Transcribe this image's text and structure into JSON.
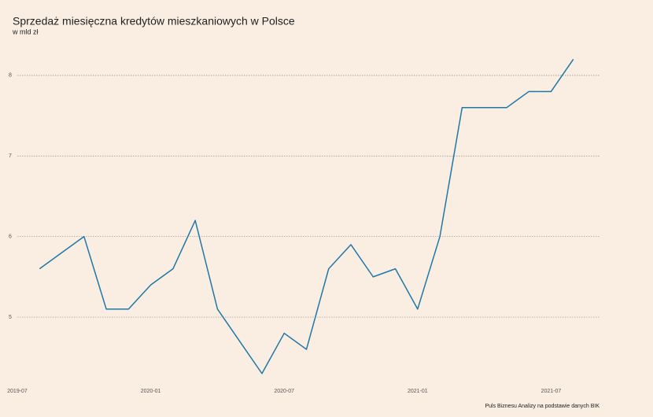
{
  "chart_data": {
    "type": "line",
    "title": "Sprzedaż miesięczna kredytów mieszkaniowych w Polsce",
    "subtitle": "w mld zł",
    "source": "Puls Biznesu Analizy na podstawie danych BIK",
    "x": [
      "2019-08",
      "2019-09",
      "2019-10",
      "2019-11",
      "2019-12",
      "2020-01",
      "2020-02",
      "2020-03",
      "2020-04",
      "2020-05",
      "2020-06",
      "2020-07",
      "2020-08",
      "2020-09",
      "2020-10",
      "2020-11",
      "2020-12",
      "2021-01",
      "2021-02",
      "2021-03",
      "2021-04",
      "2021-05",
      "2021-06",
      "2021-07",
      "2021-08"
    ],
    "series": [
      {
        "color": "#1f77a8",
        "values": [
          5.6,
          5.8,
          6.0,
          5.1,
          5.1,
          5.4,
          5.6,
          6.2,
          5.1,
          4.7,
          4.3,
          4.8,
          4.6,
          5.6,
          5.9,
          5.5,
          5.6,
          5.1,
          6.0,
          7.6,
          7.6,
          7.6,
          7.8,
          7.8,
          8.2
        ]
      }
    ],
    "xlim": [
      "2019-07",
      "2021-09"
    ],
    "xticks": [
      "2019-07",
      "2020-01",
      "2020-07",
      "2021-01",
      "2021-07"
    ],
    "ylim": [
      4.2,
      8.35
    ],
    "yticks": [
      5,
      6,
      7,
      8
    ],
    "grid": true
  }
}
